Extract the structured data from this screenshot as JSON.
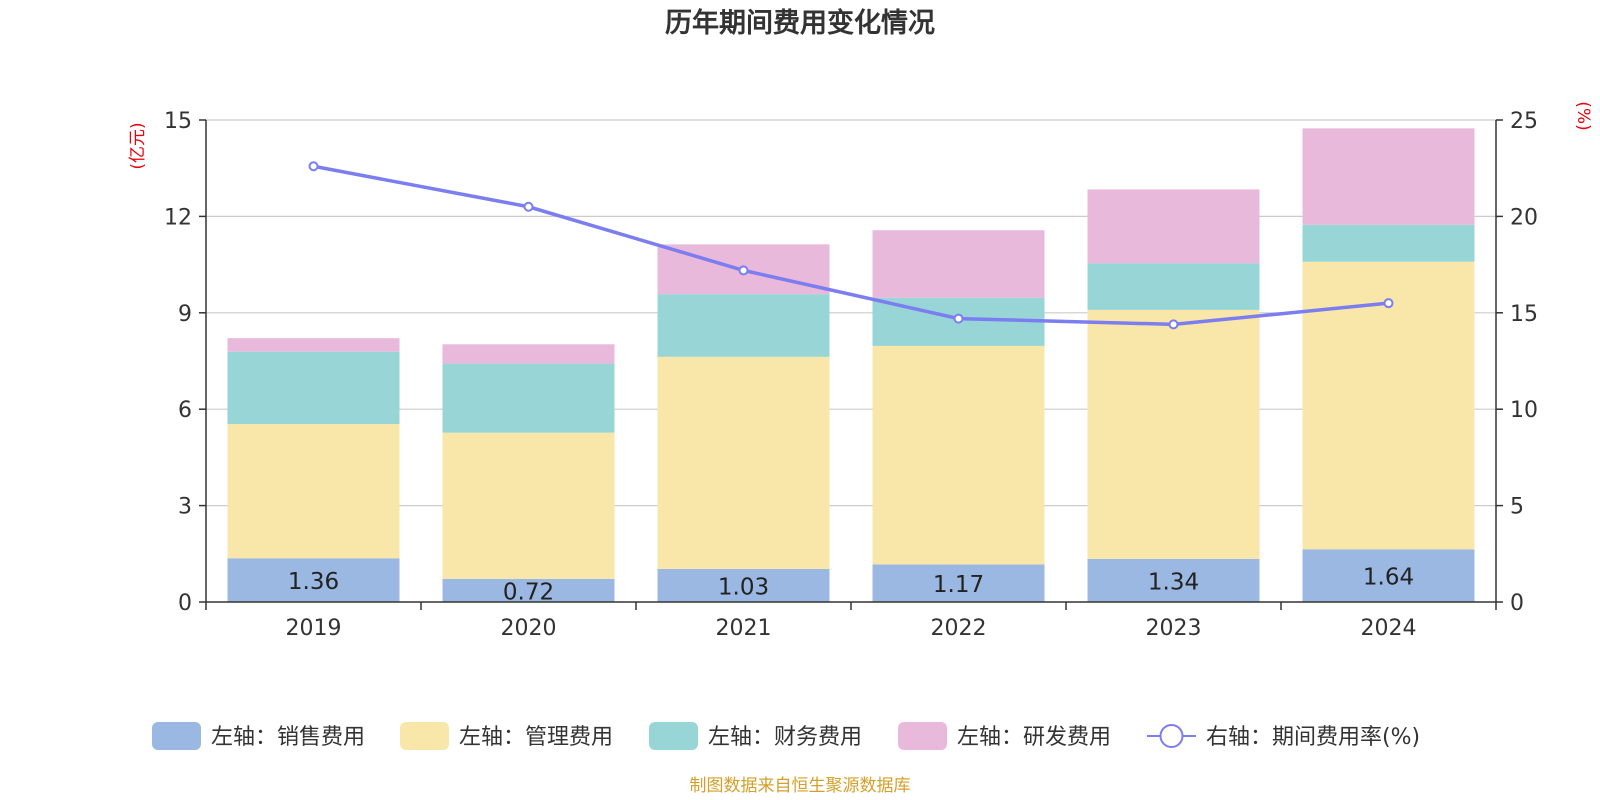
{
  "chart_data": {
    "type": "bar",
    "title": "历年期间费用变化情况",
    "categories": [
      "2019",
      "2020",
      "2021",
      "2022",
      "2023",
      "2024"
    ],
    "stacked": true,
    "left_axis": {
      "unit": "(亿元)",
      "ylim": [
        0,
        15
      ],
      "ticks": [
        "0",
        "3",
        "6",
        "9",
        "12",
        "15"
      ]
    },
    "right_axis": {
      "unit": "(%)",
      "ylim": [
        0,
        25
      ],
      "ticks": [
        "0",
        "5",
        "10",
        "15",
        "20",
        "25"
      ]
    },
    "series": [
      {
        "name": "左轴：销售费用",
        "type": "bar",
        "axis": "left",
        "color": "#9bb8e2",
        "values": [
          1.36,
          0.72,
          1.03,
          1.17,
          1.34,
          1.64
        ],
        "labels": [
          "1.36",
          "0.72",
          "1.03",
          "1.17",
          "1.34",
          "1.64"
        ]
      },
      {
        "name": "左轴：管理费用",
        "type": "bar",
        "axis": "left",
        "color": "#f8e7a8",
        "values": [
          4.18,
          4.55,
          6.6,
          6.8,
          7.75,
          8.95
        ]
      },
      {
        "name": "左轴：财务费用",
        "type": "bar",
        "axis": "left",
        "color": "#97d5d6",
        "values": [
          2.25,
          2.15,
          1.95,
          1.5,
          1.45,
          1.15
        ]
      },
      {
        "name": "左轴：研发费用",
        "type": "bar",
        "axis": "left",
        "color": "#e8b9da",
        "values": [
          0.42,
          0.6,
          1.55,
          2.1,
          2.3,
          3.0
        ]
      },
      {
        "name": "右轴：期间费用率(%)",
        "type": "line",
        "axis": "right",
        "color": "#7b7df0",
        "values": [
          22.6,
          20.5,
          17.2,
          14.7,
          14.4,
          15.5
        ]
      }
    ],
    "grid": true,
    "legend_position": "bottom",
    "source": "制图数据来自恒生聚源数据库"
  }
}
